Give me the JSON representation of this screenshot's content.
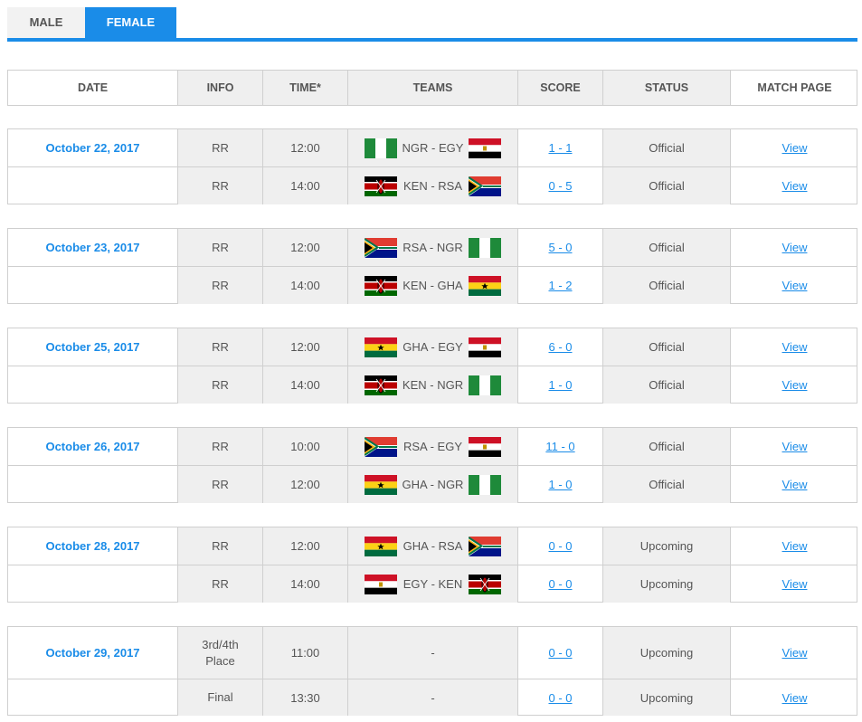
{
  "tabs": {
    "male": "MALE",
    "female": "FEMALE"
  },
  "header": [
    "DATE",
    "INFO",
    "TIME*",
    "TEAMS",
    "SCORE",
    "STATUS",
    "MATCH PAGE"
  ],
  "colors": {
    "accent": "#1a8ce8"
  },
  "groups": [
    {
      "date": "October 22, 2017",
      "rows": [
        {
          "info": "RR",
          "time": "12:00",
          "home": "ngr",
          "teams": "NGR - EGY",
          "away": "egy",
          "score": "1 - 1",
          "status": "Official",
          "link": "View"
        },
        {
          "info": "RR",
          "time": "14:00",
          "home": "ken",
          "teams": "KEN - RSA",
          "away": "rsa",
          "score": "0 - 5",
          "status": "Official",
          "link": "View"
        }
      ]
    },
    {
      "date": "October 23, 2017",
      "rows": [
        {
          "info": "RR",
          "time": "12:00",
          "home": "rsa",
          "teams": "RSA - NGR",
          "away": "ngr",
          "score": "5 - 0",
          "status": "Official",
          "link": "View"
        },
        {
          "info": "RR",
          "time": "14:00",
          "home": "ken",
          "teams": "KEN - GHA",
          "away": "gha",
          "score": "1 - 2",
          "status": "Official",
          "link": "View"
        }
      ]
    },
    {
      "date": "October 25, 2017",
      "rows": [
        {
          "info": "RR",
          "time": "12:00",
          "home": "gha",
          "teams": "GHA - EGY",
          "away": "egy",
          "score": "6 - 0",
          "status": "Official",
          "link": "View"
        },
        {
          "info": "RR",
          "time": "14:00",
          "home": "ken",
          "teams": "KEN - NGR",
          "away": "ngr",
          "score": "1 - 0",
          "status": "Official",
          "link": "View"
        }
      ]
    },
    {
      "date": "October 26, 2017",
      "rows": [
        {
          "info": "RR",
          "time": "10:00",
          "home": "rsa",
          "teams": "RSA - EGY",
          "away": "egy",
          "score": "11 - 0",
          "status": "Official",
          "link": "View"
        },
        {
          "info": "RR",
          "time": "12:00",
          "home": "gha",
          "teams": "GHA - NGR",
          "away": "ngr",
          "score": "1 - 0",
          "status": "Official",
          "link": "View"
        }
      ]
    },
    {
      "date": "October 28, 2017",
      "rows": [
        {
          "info": "RR",
          "time": "12:00",
          "home": "gha",
          "teams": "GHA - RSA",
          "away": "rsa",
          "score": "0 - 0",
          "status": "Upcoming",
          "link": "View"
        },
        {
          "info": "RR",
          "time": "14:00",
          "home": "egy",
          "teams": "EGY - KEN",
          "away": "ken",
          "score": "0 - 0",
          "status": "Upcoming",
          "link": "View"
        }
      ]
    },
    {
      "date": "October 29, 2017",
      "rows": [
        {
          "info": "3rd/4th Place",
          "time": "11:00",
          "home": "",
          "teams": "-",
          "away": "",
          "score": "0 - 0",
          "status": "Upcoming",
          "link": "View"
        },
        {
          "info": "Final",
          "time": "13:30",
          "home": "",
          "teams": "-",
          "away": "",
          "score": "0 - 0",
          "status": "Upcoming",
          "link": "View"
        }
      ]
    }
  ]
}
